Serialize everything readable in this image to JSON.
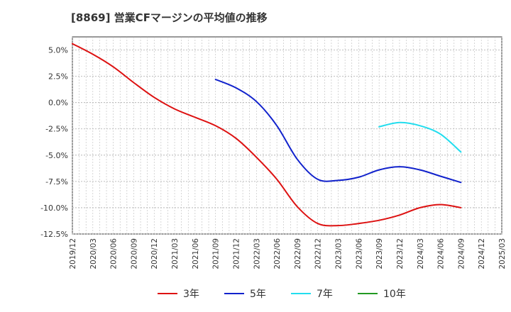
{
  "chart_data": {
    "type": "line",
    "title": "[8869]  営業CFマージンの平均値の推移",
    "xlabel": "",
    "ylabel": "",
    "ylim": [
      -12.5,
      6.25
    ],
    "yticks": [
      "5.0%",
      "2.5%",
      "0.0%",
      "-2.5%",
      "-5.0%",
      "-7.5%",
      "-10.0%",
      "-12.5%"
    ],
    "ytick_values": [
      5.0,
      2.5,
      0.0,
      -2.5,
      -5.0,
      -7.5,
      -10.0,
      -12.5
    ],
    "x_range": [
      "2019/12",
      "2025/03"
    ],
    "xticks": [
      "2019/12",
      "2020/03",
      "2020/06",
      "2020/09",
      "2020/12",
      "2021/03",
      "2021/06",
      "2021/09",
      "2021/12",
      "2022/03",
      "2022/06",
      "2022/09",
      "2022/12",
      "2023/03",
      "2023/06",
      "2023/09",
      "2023/12",
      "2024/03",
      "2024/06",
      "2024/09",
      "2024/12",
      "2025/03"
    ],
    "grid": true,
    "legend_position": "bottom",
    "series": [
      {
        "name": "3年",
        "color": "#dd1111",
        "points": [
          [
            "2019/12",
            5.6
          ],
          [
            "2020/03",
            4.6
          ],
          [
            "2020/06",
            3.4
          ],
          [
            "2020/09",
            1.9
          ],
          [
            "2020/12",
            0.5
          ],
          [
            "2021/03",
            -0.6
          ],
          [
            "2021/06",
            -1.4
          ],
          [
            "2021/09",
            -2.2
          ],
          [
            "2021/12",
            -3.4
          ],
          [
            "2022/03",
            -5.2
          ],
          [
            "2022/06",
            -7.3
          ],
          [
            "2022/09",
            -9.9
          ],
          [
            "2022/12",
            -11.5
          ],
          [
            "2023/03",
            -11.7
          ],
          [
            "2023/06",
            -11.5
          ],
          [
            "2023/09",
            -11.2
          ],
          [
            "2023/12",
            -10.7
          ],
          [
            "2024/03",
            -10.0
          ],
          [
            "2024/06",
            -9.7
          ],
          [
            "2024/09",
            -10.0
          ]
        ]
      },
      {
        "name": "5年",
        "color": "#1122cc",
        "points": [
          [
            "2021/09",
            2.2
          ],
          [
            "2021/12",
            1.4
          ],
          [
            "2022/03",
            0.1
          ],
          [
            "2022/06",
            -2.2
          ],
          [
            "2022/09",
            -5.4
          ],
          [
            "2022/12",
            -7.3
          ],
          [
            "2023/03",
            -7.4
          ],
          [
            "2023/06",
            -7.1
          ],
          [
            "2023/09",
            -6.4
          ],
          [
            "2023/12",
            -6.1
          ],
          [
            "2024/03",
            -6.4
          ],
          [
            "2024/06",
            -7.0
          ],
          [
            "2024/09",
            -7.6
          ]
        ]
      },
      {
        "name": "7年",
        "color": "#22ddee",
        "points": [
          [
            "2023/09",
            -2.3
          ],
          [
            "2023/12",
            -1.9
          ],
          [
            "2024/03",
            -2.2
          ],
          [
            "2024/06",
            -3.0
          ],
          [
            "2024/09",
            -4.7
          ]
        ]
      },
      {
        "name": "10年",
        "color": "#229922",
        "points": []
      }
    ]
  }
}
